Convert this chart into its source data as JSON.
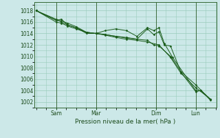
{
  "background_color": "#cce8e8",
  "grid_color": "#99ccbb",
  "line_color": "#1a5c1a",
  "marker_color": "#1a5c1a",
  "xlabel": "Pression niveau de la mer( hPa )",
  "ylabel_ticks": [
    1002,
    1004,
    1006,
    1008,
    1010,
    1012,
    1014,
    1016,
    1018
  ],
  "ylim": [
    1001.0,
    1019.5
  ],
  "xlim": [
    -0.1,
    8.6
  ],
  "xtick_positions": [
    0.95,
    2.85,
    5.7,
    7.6
  ],
  "xtick_labels": [
    "Sam",
    "Mar",
    "Dim",
    "Lun"
  ],
  "vline_positions": [
    0.95,
    2.85,
    5.7,
    7.6
  ],
  "series": [
    {
      "x": [
        0.0,
        0.95,
        1.2,
        1.5,
        1.9,
        2.4,
        2.85,
        3.3,
        3.8,
        4.3,
        4.8,
        5.3,
        5.6,
        5.85,
        6.1,
        6.5,
        7.6,
        7.85,
        8.3
      ],
      "y": [
        1018.0,
        1016.3,
        1016.5,
        1015.5,
        1015.0,
        1014.2,
        1014.0,
        1014.5,
        1014.8,
        1014.5,
        1013.5,
        1015.0,
        1014.5,
        1015.0,
        1012.3,
        1009.8,
        1004.0,
        1004.0,
        1002.5
      ]
    },
    {
      "x": [
        0.0,
        0.95,
        1.2,
        1.5,
        1.9,
        2.4,
        2.85,
        3.3,
        3.8,
        4.3,
        4.8,
        5.3,
        5.6,
        5.85,
        6.1,
        6.4,
        6.9,
        7.6,
        7.85,
        8.3
      ],
      "y": [
        1018.0,
        1016.3,
        1016.2,
        1015.8,
        1015.2,
        1014.2,
        1014.0,
        1013.8,
        1013.5,
        1013.2,
        1013.0,
        1014.8,
        1013.8,
        1014.3,
        1012.0,
        1011.8,
        1007.2,
        1003.8,
        1004.0,
        1002.3
      ]
    },
    {
      "x": [
        0.0,
        0.95,
        1.2,
        1.5,
        1.9,
        2.4,
        2.85,
        3.3,
        3.8,
        4.3,
        4.8,
        5.3,
        5.6,
        5.85,
        6.4,
        6.9,
        7.6,
        8.3
      ],
      "y": [
        1018.0,
        1016.5,
        1016.0,
        1015.5,
        1015.0,
        1014.0,
        1014.0,
        1013.8,
        1013.5,
        1013.3,
        1013.0,
        1012.8,
        1012.0,
        1011.8,
        1010.0,
        1007.3,
        1005.0,
        1002.4
      ]
    },
    {
      "x": [
        0.0,
        0.95,
        1.2,
        1.5,
        1.9,
        2.4,
        2.85,
        3.3,
        3.8,
        4.3,
        4.8,
        5.3,
        5.85,
        6.4,
        6.9,
        7.6,
        8.3
      ],
      "y": [
        1018.0,
        1016.0,
        1015.8,
        1015.3,
        1014.8,
        1014.2,
        1014.0,
        1013.7,
        1013.3,
        1013.0,
        1012.8,
        1012.5,
        1012.0,
        1009.8,
        1007.0,
        1004.5,
        1002.5
      ]
    }
  ]
}
